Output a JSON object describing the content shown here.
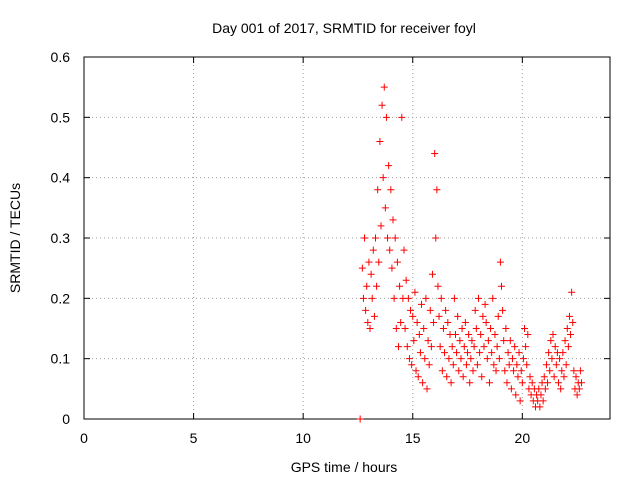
{
  "chart_data": {
    "type": "scatter",
    "title": "Day 001 of 2017, SRMTID for receiver foyl",
    "xlabel": "GPS time / hours",
    "ylabel": "SRMTID / TECUs",
    "xlim": [
      0,
      24
    ],
    "ylim": [
      0,
      0.6
    ],
    "xticks": [
      0,
      5,
      10,
      15,
      20
    ],
    "yticks": [
      0,
      0.1,
      0.2,
      0.3,
      0.4,
      0.5,
      0.6
    ],
    "xtick_labels": [
      "0",
      "5",
      "10",
      "15",
      "20"
    ],
    "ytick_labels": [
      "0",
      "0.1",
      "0.2",
      "0.3",
      "0.4",
      "0.5",
      "0.6"
    ],
    "grid": true,
    "marker": "+",
    "color": "#ff0000",
    "series": [
      {
        "name": "SRMTID",
        "x": [
          12.6,
          12.7,
          12.75,
          12.8,
          12.85,
          12.9,
          12.95,
          13.0,
          13.05,
          13.1,
          13.15,
          13.2,
          13.25,
          13.3,
          13.35,
          13.4,
          13.45,
          13.5,
          13.55,
          13.6,
          13.65,
          13.7,
          13.75,
          13.8,
          13.85,
          13.9,
          13.95,
          14.0,
          14.05,
          14.1,
          14.15,
          14.2,
          14.25,
          14.3,
          14.35,
          14.4,
          14.45,
          14.5,
          14.55,
          14.6,
          14.65,
          14.7,
          14.75,
          14.8,
          14.85,
          14.9,
          14.95,
          15.0,
          15.05,
          15.1,
          15.15,
          15.2,
          15.25,
          15.3,
          15.35,
          15.4,
          15.45,
          15.5,
          15.55,
          15.6,
          15.65,
          15.7,
          15.75,
          15.8,
          15.85,
          15.9,
          15.95,
          16.0,
          16.05,
          16.1,
          16.15,
          16.2,
          16.25,
          16.3,
          16.35,
          16.4,
          16.45,
          16.5,
          16.55,
          16.6,
          16.65,
          16.7,
          16.75,
          16.8,
          16.85,
          16.9,
          16.95,
          17.0,
          17.05,
          17.1,
          17.15,
          17.2,
          17.25,
          17.3,
          17.35,
          17.4,
          17.45,
          17.5,
          17.55,
          17.6,
          17.65,
          17.7,
          17.75,
          17.8,
          17.85,
          17.9,
          17.95,
          18.0,
          18.05,
          18.1,
          18.15,
          18.2,
          18.25,
          18.3,
          18.35,
          18.4,
          18.45,
          18.5,
          18.55,
          18.6,
          18.65,
          18.7,
          18.75,
          18.8,
          18.85,
          18.9,
          18.95,
          19.0,
          19.05,
          19.1,
          19.15,
          19.2,
          19.25,
          19.3,
          19.35,
          19.4,
          19.45,
          19.5,
          19.55,
          19.6,
          19.65,
          19.7,
          19.75,
          19.8,
          19.85,
          19.9,
          19.95,
          20.0,
          20.05,
          20.1,
          20.15,
          20.2,
          20.25,
          20.3,
          20.35,
          20.4,
          20.45,
          20.5,
          20.55,
          20.6,
          20.65,
          20.7,
          20.75,
          20.8,
          20.85,
          20.9,
          20.95,
          21.0,
          21.05,
          21.1,
          21.15,
          21.2,
          21.25,
          21.3,
          21.35,
          21.4,
          21.45,
          21.5,
          21.55,
          21.6,
          21.65,
          21.7,
          21.75,
          21.8,
          21.85,
          21.9,
          21.95,
          22.0,
          22.05,
          22.1,
          22.15,
          22.2,
          22.25,
          22.3,
          22.35,
          22.4,
          22.45,
          22.5,
          22.55,
          22.6,
          22.65,
          22.7
        ],
        "y": [
          0.0,
          0.25,
          0.2,
          0.3,
          0.18,
          0.22,
          0.16,
          0.26,
          0.15,
          0.24,
          0.2,
          0.28,
          0.17,
          0.3,
          0.22,
          0.38,
          0.26,
          0.46,
          0.32,
          0.52,
          0.4,
          0.55,
          0.35,
          0.5,
          0.3,
          0.42,
          0.28,
          0.38,
          0.25,
          0.33,
          0.2,
          0.3,
          0.15,
          0.26,
          0.12,
          0.22,
          0.16,
          0.5,
          0.2,
          0.28,
          0.15,
          0.23,
          0.12,
          0.2,
          0.1,
          0.18,
          0.09,
          0.17,
          0.13,
          0.21,
          0.08,
          0.16,
          0.07,
          0.14,
          0.11,
          0.19,
          0.06,
          0.15,
          0.1,
          0.2,
          0.05,
          0.13,
          0.09,
          0.18,
          0.12,
          0.24,
          0.16,
          0.44,
          0.3,
          0.38,
          0.22,
          0.17,
          0.12,
          0.2,
          0.08,
          0.15,
          0.11,
          0.18,
          0.07,
          0.16,
          0.1,
          0.14,
          0.06,
          0.12,
          0.09,
          0.2,
          0.14,
          0.11,
          0.17,
          0.08,
          0.13,
          0.1,
          0.15,
          0.07,
          0.12,
          0.16,
          0.09,
          0.11,
          0.14,
          0.06,
          0.1,
          0.13,
          0.08,
          0.12,
          0.18,
          0.15,
          0.09,
          0.2,
          0.11,
          0.14,
          0.07,
          0.17,
          0.12,
          0.19,
          0.16,
          0.1,
          0.13,
          0.06,
          0.15,
          0.11,
          0.2,
          0.09,
          0.14,
          0.08,
          0.12,
          0.17,
          0.1,
          0.26,
          0.22,
          0.18,
          0.13,
          0.08,
          0.15,
          0.06,
          0.11,
          0.09,
          0.13,
          0.05,
          0.1,
          0.08,
          0.12,
          0.04,
          0.09,
          0.07,
          0.11,
          0.03,
          0.08,
          0.06,
          0.1,
          0.15,
          0.12,
          0.09,
          0.14,
          0.05,
          0.07,
          0.04,
          0.06,
          0.03,
          0.05,
          0.02,
          0.04,
          0.03,
          0.05,
          0.02,
          0.04,
          0.06,
          0.03,
          0.07,
          0.05,
          0.09,
          0.06,
          0.11,
          0.08,
          0.13,
          0.1,
          0.14,
          0.07,
          0.12,
          0.09,
          0.11,
          0.06,
          0.1,
          0.05,
          0.08,
          0.11,
          0.07,
          0.13,
          0.09,
          0.15,
          0.12,
          0.17,
          0.14,
          0.21,
          0.16,
          0.08,
          0.05,
          0.07,
          0.04,
          0.06,
          0.05,
          0.08,
          0.06
        ]
      }
    ]
  }
}
